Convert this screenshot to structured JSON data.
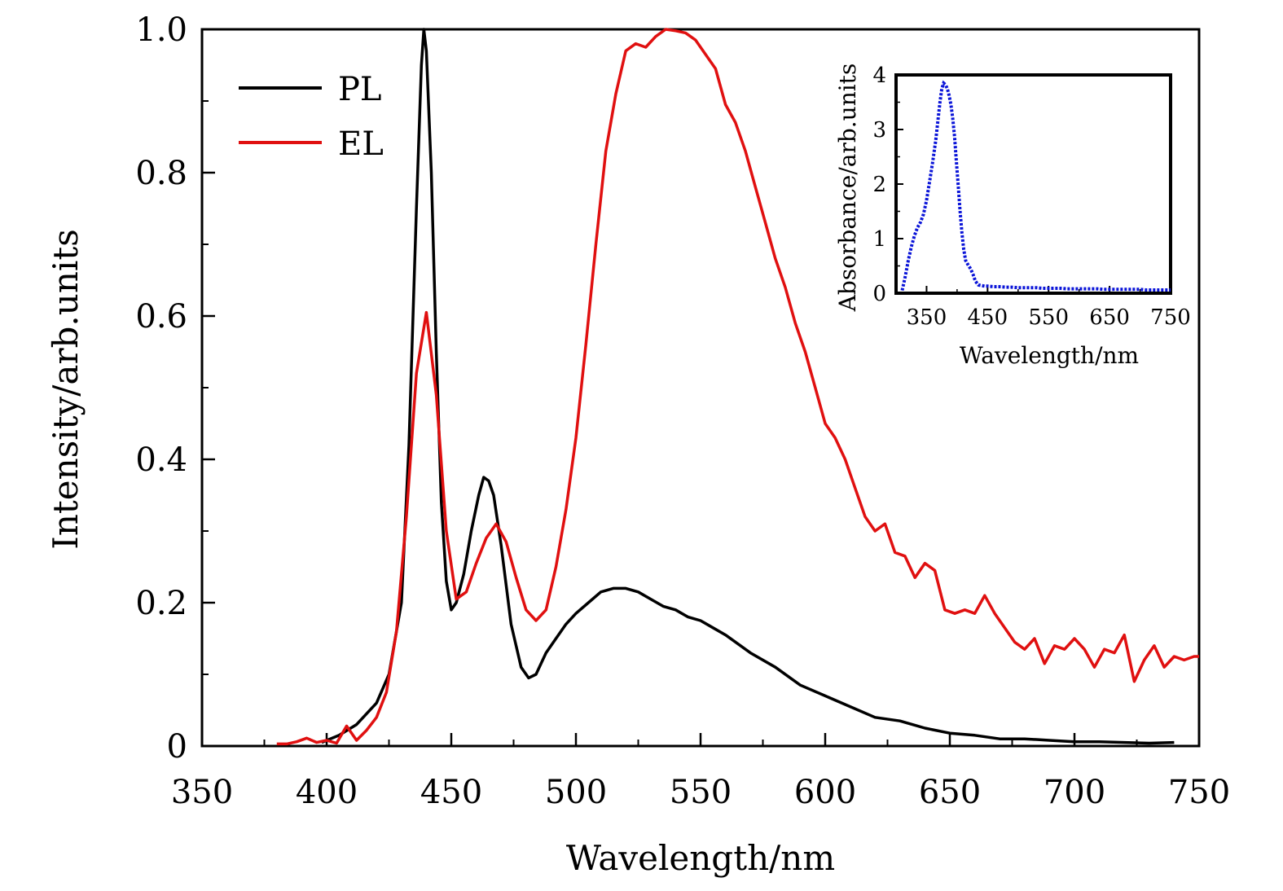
{
  "chart_data": [
    {
      "type": "line",
      "xlabel": "Wavelength/nm",
      "ylabel": "Intensity/arb.units",
      "xlim": [
        350,
        750
      ],
      "ylim": [
        0,
        1.0
      ],
      "xticks": [
        350,
        400,
        450,
        500,
        550,
        600,
        650,
        700,
        750
      ],
      "xtick_labels": [
        "350",
        "400",
        "450",
        "500",
        "550",
        "600",
        "650",
        "700",
        "750"
      ],
      "yticks": [
        0,
        0.2,
        0.4,
        0.6,
        0.8,
        1.0
      ],
      "ytick_labels": [
        "0",
        "0.2",
        "0.4",
        "0.6",
        "0.8",
        "1.0"
      ],
      "legend_position": "top-left",
      "series": [
        {
          "name": "PL",
          "color": "#000000",
          "x": [
            398,
            405,
            412,
            420,
            425,
            430,
            433,
            436,
            438,
            439,
            440,
            442,
            444,
            446,
            448,
            450,
            452,
            455,
            458,
            461,
            463,
            465,
            467,
            470,
            474,
            478,
            481,
            484,
            488,
            492,
            496,
            500,
            505,
            510,
            515,
            520,
            525,
            530,
            535,
            540,
            545,
            550,
            555,
            560,
            570,
            580,
            590,
            600,
            610,
            620,
            630,
            640,
            650,
            660,
            670,
            680,
            690,
            700,
            710,
            720,
            730,
            740
          ],
          "y": [
            0.005,
            0.015,
            0.03,
            0.06,
            0.1,
            0.2,
            0.42,
            0.75,
            0.95,
            1.0,
            0.97,
            0.8,
            0.55,
            0.34,
            0.23,
            0.19,
            0.2,
            0.24,
            0.3,
            0.35,
            0.375,
            0.37,
            0.35,
            0.28,
            0.17,
            0.11,
            0.095,
            0.1,
            0.13,
            0.15,
            0.17,
            0.185,
            0.2,
            0.215,
            0.22,
            0.22,
            0.215,
            0.205,
            0.195,
            0.19,
            0.18,
            0.175,
            0.165,
            0.155,
            0.13,
            0.11,
            0.085,
            0.07,
            0.055,
            0.04,
            0.035,
            0.025,
            0.018,
            0.015,
            0.01,
            0.01,
            0.008,
            0.006,
            0.006,
            0.005,
            0.004,
            0.005
          ]
        },
        {
          "name": "EL",
          "color": "#e01010",
          "x": [
            380,
            384,
            388,
            392,
            396,
            400,
            404,
            408,
            412,
            416,
            420,
            424,
            428,
            432,
            436,
            440,
            444,
            448,
            452,
            456,
            460,
            464,
            468,
            472,
            476,
            480,
            484,
            488,
            492,
            496,
            500,
            504,
            508,
            512,
            516,
            520,
            524,
            528,
            532,
            536,
            540,
            544,
            548,
            552,
            556,
            560,
            564,
            568,
            572,
            576,
            580,
            584,
            588,
            592,
            596,
            600,
            604,
            608,
            612,
            616,
            620,
            624,
            628,
            632,
            636,
            640,
            644,
            648,
            652,
            656,
            660,
            664,
            668,
            672,
            676,
            680,
            684,
            688,
            692,
            696,
            700,
            704,
            708,
            712,
            716,
            720,
            724,
            728,
            732,
            736,
            740,
            744,
            748,
            750
          ],
          "y": [
            0.003,
            0.003,
            0.006,
            0.011,
            0.005,
            0.008,
            0.004,
            0.028,
            0.008,
            0.022,
            0.04,
            0.075,
            0.16,
            0.32,
            0.52,
            0.605,
            0.49,
            0.3,
            0.205,
            0.215,
            0.255,
            0.29,
            0.31,
            0.285,
            0.235,
            0.19,
            0.175,
            0.19,
            0.25,
            0.33,
            0.43,
            0.56,
            0.7,
            0.83,
            0.91,
            0.97,
            0.98,
            0.975,
            0.99,
            1.0,
            0.998,
            0.995,
            0.985,
            0.965,
            0.945,
            0.895,
            0.87,
            0.83,
            0.78,
            0.73,
            0.68,
            0.64,
            0.59,
            0.55,
            0.5,
            0.45,
            0.43,
            0.4,
            0.36,
            0.32,
            0.3,
            0.31,
            0.27,
            0.265,
            0.235,
            0.255,
            0.245,
            0.19,
            0.185,
            0.19,
            0.185,
            0.21,
            0.185,
            0.165,
            0.145,
            0.135,
            0.15,
            0.115,
            0.14,
            0.135,
            0.15,
            0.135,
            0.11,
            0.135,
            0.13,
            0.155,
            0.09,
            0.12,
            0.14,
            0.11,
            0.125,
            0.12,
            0.125,
            0.125
          ]
        }
      ]
    },
    {
      "type": "scatter",
      "inset": true,
      "xlabel": "Wavelength/nm",
      "ylabel": "Absorbance/arb.units",
      "xlim": [
        300,
        750
      ],
      "ylim": [
        0,
        4
      ],
      "xticks": [
        350,
        450,
        550,
        650,
        750
      ],
      "xtick_labels": [
        "350",
        "450",
        "550",
        "650",
        "750"
      ],
      "yticks": [
        0,
        1,
        2,
        3,
        4
      ],
      "ytick_labels": [
        "0",
        "1",
        "2",
        "3",
        "4"
      ],
      "series": [
        {
          "name": "Absorbance",
          "color": "#0a14d8",
          "x": [
            310,
            315,
            320,
            325,
            330,
            335,
            340,
            345,
            350,
            355,
            360,
            365,
            370,
            372,
            375,
            378,
            381,
            384,
            387,
            390,
            393,
            396,
            399,
            402,
            405,
            408,
            411,
            414,
            418,
            422,
            426,
            430,
            435,
            440,
            445,
            450,
            460,
            470,
            480,
            490,
            500,
            510,
            520,
            530,
            540,
            550,
            560,
            570,
            580,
            590,
            600,
            610,
            620,
            630,
            640,
            650,
            660,
            670,
            680,
            690,
            700,
            710,
            720,
            730,
            740,
            750
          ],
          "y": [
            0.05,
            0.3,
            0.6,
            0.85,
            1.05,
            1.2,
            1.3,
            1.45,
            1.7,
            2.05,
            2.4,
            2.8,
            3.3,
            3.5,
            3.75,
            3.85,
            3.82,
            3.75,
            3.62,
            3.45,
            3.2,
            2.85,
            2.4,
            1.95,
            1.5,
            1.1,
            0.8,
            0.6,
            0.52,
            0.45,
            0.35,
            0.22,
            0.15,
            0.14,
            0.13,
            0.13,
            0.12,
            0.12,
            0.11,
            0.11,
            0.1,
            0.1,
            0.1,
            0.1,
            0.09,
            0.09,
            0.09,
            0.09,
            0.08,
            0.08,
            0.08,
            0.08,
            0.08,
            0.08,
            0.07,
            0.07,
            0.07,
            0.07,
            0.07,
            0.07,
            0.07,
            0.06,
            0.06,
            0.06,
            0.06,
            0.06
          ]
        }
      ]
    }
  ]
}
